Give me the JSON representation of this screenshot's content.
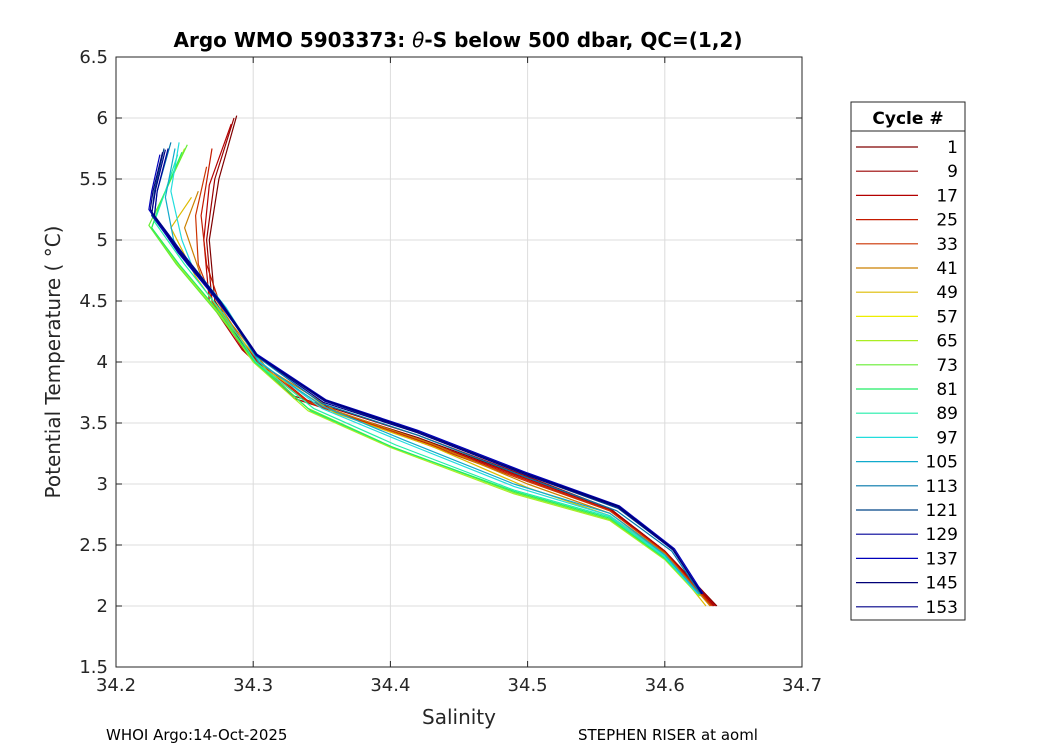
{
  "chart_data": {
    "type": "line",
    "title": "Argo WMO 5903373: θ-S below 500 dbar,  QC=(1,2)",
    "title_prefix": "Argo WMO 5903373: ",
    "title_theta": "θ",
    "title_suffix": "-S below 500 dbar,  QC=(1,2)",
    "xlabel": "Salinity",
    "ylabel": "Potential Temperature ( °C)",
    "xlim": [
      34.2,
      34.7
    ],
    "ylim": [
      1.5,
      6.5
    ],
    "x_ticks": [
      "34.2",
      "34.3",
      "34.4",
      "34.5",
      "34.6",
      "34.7"
    ],
    "y_ticks": [
      "1.5",
      "2",
      "2.5",
      "3",
      "3.5",
      "4",
      "4.5",
      "5",
      "5.5",
      "6",
      "6.5"
    ],
    "grid": true,
    "legend_title": "Cycle #",
    "legend_placement": "right-outside",
    "legend": [
      {
        "label": "1",
        "color": "#800000"
      },
      {
        "label": "9",
        "color": "#9a0000"
      },
      {
        "label": "17",
        "color": "#b40000"
      },
      {
        "label": "25",
        "color": "#c41a00"
      },
      {
        "label": "33",
        "color": "#cc3300"
      },
      {
        "label": "41",
        "color": "#cc8000"
      },
      {
        "label": "49",
        "color": "#ddbb00"
      },
      {
        "label": "57",
        "color": "#eeee00"
      },
      {
        "label": "65",
        "color": "#aaee22"
      },
      {
        "label": "73",
        "color": "#66ee33"
      },
      {
        "label": "81",
        "color": "#22ee66"
      },
      {
        "label": "89",
        "color": "#22eeaa"
      },
      {
        "label": "97",
        "color": "#22dddd"
      },
      {
        "label": "105",
        "color": "#11aacc"
      },
      {
        "label": "113",
        "color": "#0077aa"
      },
      {
        "label": "121",
        "color": "#004488"
      },
      {
        "label": "129",
        "color": "#000099"
      },
      {
        "label": "137",
        "color": "#0000bb"
      },
      {
        "label": "145",
        "color": "#000077"
      },
      {
        "label": "153",
        "color": "#000088"
      }
    ],
    "series": [
      {
        "color": "#800000",
        "points": [
          [
            34.288,
            6.02
          ],
          [
            34.275,
            5.5
          ],
          [
            34.268,
            5.0
          ],
          [
            34.272,
            4.5
          ],
          [
            34.295,
            4.1
          ],
          [
            34.33,
            3.7
          ],
          [
            34.42,
            3.38
          ],
          [
            34.5,
            3.05
          ],
          [
            34.56,
            2.8
          ],
          [
            34.6,
            2.45
          ],
          [
            34.638,
            2.0
          ]
        ]
      },
      {
        "color": "#9a0000",
        "points": [
          [
            34.286,
            6.0
          ],
          [
            34.272,
            5.5
          ],
          [
            34.266,
            5.0
          ],
          [
            34.27,
            4.5
          ],
          [
            34.293,
            4.1
          ],
          [
            34.33,
            3.72
          ],
          [
            34.42,
            3.4
          ],
          [
            34.5,
            3.06
          ],
          [
            34.56,
            2.8
          ],
          [
            34.6,
            2.45
          ],
          [
            34.636,
            2.0
          ]
        ]
      },
      {
        "color": "#b40000",
        "points": [
          [
            34.284,
            5.95
          ],
          [
            34.268,
            5.45
          ],
          [
            34.264,
            5.0
          ],
          [
            34.268,
            4.5
          ],
          [
            34.292,
            4.1
          ],
          [
            34.33,
            3.7
          ],
          [
            34.42,
            3.37
          ],
          [
            34.5,
            3.04
          ],
          [
            34.56,
            2.79
          ],
          [
            34.6,
            2.45
          ],
          [
            34.637,
            2.0
          ]
        ]
      },
      {
        "color": "#c41a00",
        "points": [
          [
            34.27,
            5.75
          ],
          [
            34.262,
            5.2
          ],
          [
            34.266,
            4.8
          ],
          [
            34.278,
            4.4
          ],
          [
            34.3,
            4.05
          ],
          [
            34.34,
            3.68
          ],
          [
            34.42,
            3.36
          ],
          [
            34.5,
            3.03
          ],
          [
            34.56,
            2.78
          ],
          [
            34.6,
            2.44
          ],
          [
            34.635,
            2.0
          ]
        ]
      },
      {
        "color": "#cc3300",
        "points": [
          [
            34.266,
            5.6
          ],
          [
            34.258,
            5.2
          ],
          [
            34.26,
            4.8
          ],
          [
            34.274,
            4.4
          ],
          [
            34.298,
            4.05
          ],
          [
            34.34,
            3.67
          ],
          [
            34.42,
            3.35
          ],
          [
            34.5,
            3.02
          ],
          [
            34.56,
            2.78
          ],
          [
            34.6,
            2.44
          ],
          [
            34.634,
            2.0
          ]
        ]
      },
      {
        "color": "#cc8000",
        "points": [
          [
            34.26,
            5.4
          ],
          [
            34.25,
            5.1
          ],
          [
            34.262,
            4.7
          ],
          [
            34.285,
            4.3
          ],
          [
            34.31,
            3.95
          ],
          [
            34.36,
            3.6
          ],
          [
            34.43,
            3.33
          ],
          [
            34.5,
            3.0
          ],
          [
            34.56,
            2.76
          ],
          [
            34.6,
            2.43
          ],
          [
            34.633,
            2.0
          ]
        ]
      },
      {
        "color": "#ddbb00",
        "points": [
          [
            34.255,
            5.35
          ],
          [
            34.24,
            5.1
          ],
          [
            34.258,
            4.7
          ],
          [
            34.283,
            4.3
          ],
          [
            34.31,
            3.93
          ],
          [
            34.36,
            3.58
          ],
          [
            34.43,
            3.31
          ],
          [
            34.5,
            2.97
          ],
          [
            34.56,
            2.74
          ],
          [
            34.6,
            2.42
          ],
          [
            34.63,
            2.0
          ]
        ]
      },
      {
        "color": "#aaee22",
        "points": [
          [
            34.25,
            5.75
          ],
          [
            34.232,
            5.3
          ],
          [
            34.226,
            5.1
          ],
          [
            34.245,
            4.8
          ],
          [
            34.275,
            4.4
          ],
          [
            34.3,
            4.0
          ],
          [
            34.34,
            3.6
          ],
          [
            34.4,
            3.3
          ],
          [
            34.49,
            2.92
          ],
          [
            34.56,
            2.7
          ],
          [
            34.6,
            2.38
          ],
          [
            34.625,
            2.08
          ]
        ]
      },
      {
        "color": "#66ee33",
        "points": [
          [
            34.252,
            5.78
          ],
          [
            34.234,
            5.35
          ],
          [
            34.224,
            5.12
          ],
          [
            34.244,
            4.8
          ],
          [
            34.274,
            4.4
          ],
          [
            34.3,
            4.02
          ],
          [
            34.34,
            3.62
          ],
          [
            34.4,
            3.31
          ],
          [
            34.49,
            2.93
          ],
          [
            34.56,
            2.71
          ],
          [
            34.6,
            2.39
          ],
          [
            34.626,
            2.08
          ]
        ]
      },
      {
        "color": "#22ee66",
        "points": [
          [
            34.248,
            5.72
          ],
          [
            34.233,
            5.32
          ],
          [
            34.226,
            5.1
          ],
          [
            34.246,
            4.8
          ],
          [
            34.276,
            4.4
          ],
          [
            34.301,
            4.0
          ],
          [
            34.342,
            3.6
          ],
          [
            34.402,
            3.3
          ],
          [
            34.49,
            2.94
          ],
          [
            34.56,
            2.72
          ],
          [
            34.6,
            2.39
          ],
          [
            34.625,
            2.1
          ]
        ]
      },
      {
        "color": "#22eeaa",
        "points": [
          [
            34.245,
            5.7
          ],
          [
            34.236,
            5.4
          ],
          [
            34.228,
            5.15
          ],
          [
            34.25,
            4.8
          ],
          [
            34.278,
            4.4
          ],
          [
            34.302,
            4.0
          ],
          [
            34.344,
            3.62
          ],
          [
            34.404,
            3.32
          ],
          [
            34.49,
            2.95
          ],
          [
            34.56,
            2.73
          ],
          [
            34.6,
            2.4
          ],
          [
            34.624,
            2.1
          ]
        ]
      },
      {
        "color": "#22dddd",
        "points": [
          [
            34.246,
            5.8
          ],
          [
            34.24,
            5.4
          ],
          [
            34.248,
            5.0
          ],
          [
            34.255,
            4.8
          ],
          [
            34.28,
            4.45
          ],
          [
            34.305,
            4.0
          ],
          [
            34.35,
            3.62
          ],
          [
            34.41,
            3.34
          ],
          [
            34.49,
            2.98
          ],
          [
            34.56,
            2.74
          ],
          [
            34.6,
            2.41
          ],
          [
            34.624,
            2.1
          ]
        ]
      },
      {
        "color": "#11aacc",
        "points": [
          [
            34.243,
            5.75
          ],
          [
            34.236,
            5.35
          ],
          [
            34.242,
            5.0
          ],
          [
            34.252,
            4.8
          ],
          [
            34.279,
            4.45
          ],
          [
            34.304,
            4.0
          ],
          [
            34.35,
            3.64
          ],
          [
            34.41,
            3.36
          ],
          [
            34.49,
            3.0
          ],
          [
            34.56,
            2.76
          ],
          [
            34.6,
            2.42
          ],
          [
            34.625,
            2.1
          ]
        ]
      },
      {
        "color": "#0077aa",
        "points": [
          [
            34.24,
            5.8
          ],
          [
            34.23,
            5.4
          ],
          [
            34.228,
            5.2
          ],
          [
            34.248,
            4.9
          ],
          [
            34.275,
            4.5
          ],
          [
            34.302,
            4.05
          ],
          [
            34.35,
            3.66
          ],
          [
            34.42,
            3.4
          ],
          [
            34.5,
            3.05
          ],
          [
            34.565,
            2.78
          ],
          [
            34.605,
            2.45
          ],
          [
            34.626,
            2.1
          ]
        ]
      },
      {
        "color": "#004488",
        "points": [
          [
            34.235,
            5.75
          ],
          [
            34.228,
            5.4
          ],
          [
            34.226,
            5.2
          ],
          [
            34.246,
            4.9
          ],
          [
            34.275,
            4.5
          ],
          [
            34.302,
            4.06
          ],
          [
            34.352,
            3.68
          ],
          [
            34.42,
            3.42
          ],
          [
            34.5,
            3.07
          ],
          [
            34.566,
            2.8
          ],
          [
            34.606,
            2.46
          ],
          [
            34.627,
            2.1
          ]
        ]
      },
      {
        "color": "#000099",
        "points": [
          [
            34.238,
            5.75
          ],
          [
            34.23,
            5.4
          ],
          [
            34.228,
            5.2
          ],
          [
            34.248,
            4.9
          ],
          [
            34.276,
            4.5
          ],
          [
            34.303,
            4.06
          ],
          [
            34.352,
            3.68
          ],
          [
            34.42,
            3.43
          ],
          [
            34.5,
            3.08
          ],
          [
            34.566,
            2.81
          ],
          [
            34.606,
            2.46
          ],
          [
            34.627,
            2.1
          ]
        ]
      },
      {
        "color": "#0000bb",
        "points": [
          [
            34.232,
            5.7
          ],
          [
            34.226,
            5.4
          ],
          [
            34.224,
            5.25
          ],
          [
            34.245,
            4.9
          ],
          [
            34.274,
            4.5
          ],
          [
            34.302,
            4.07
          ],
          [
            34.353,
            3.69
          ],
          [
            34.42,
            3.44
          ],
          [
            34.5,
            3.09
          ],
          [
            34.567,
            2.82
          ],
          [
            34.607,
            2.47
          ],
          [
            34.628,
            2.1
          ]
        ]
      },
      {
        "color": "#000077",
        "points": [
          [
            34.234,
            5.72
          ],
          [
            34.227,
            5.4
          ],
          [
            34.225,
            5.25
          ],
          [
            34.246,
            4.9
          ],
          [
            34.275,
            4.5
          ],
          [
            34.302,
            4.06
          ],
          [
            34.352,
            3.69
          ],
          [
            34.42,
            3.43
          ],
          [
            34.5,
            3.08
          ],
          [
            34.566,
            2.82
          ],
          [
            34.606,
            2.47
          ],
          [
            34.627,
            2.1
          ]
        ]
      },
      {
        "color": "#000088",
        "points": [
          [
            34.236,
            5.74
          ],
          [
            34.229,
            5.42
          ],
          [
            34.226,
            5.22
          ],
          [
            34.247,
            4.9
          ],
          [
            34.276,
            4.5
          ],
          [
            34.303,
            4.05
          ],
          [
            34.351,
            3.67
          ],
          [
            34.42,
            3.42
          ],
          [
            34.5,
            3.07
          ],
          [
            34.566,
            2.81
          ],
          [
            34.606,
            2.46
          ],
          [
            34.627,
            2.1
          ]
        ]
      }
    ]
  },
  "footer": {
    "left": "WHOI Argo:14-Oct-2025",
    "right": "STEPHEN RISER at aoml"
  }
}
